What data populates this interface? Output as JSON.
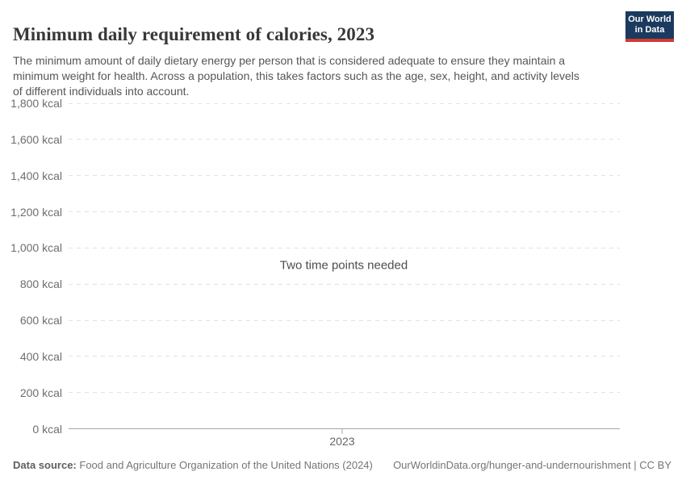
{
  "header": {
    "title": "Minimum daily requirement of calories, 2023",
    "subtitle": "The minimum amount of daily dietary energy per person that is considered adequate to ensure they maintain a minimum weight for health. Across a population, this takes factors such as the age, sex, height, and activity levels of different individuals into account.",
    "logo": {
      "line1": "Our World",
      "line2": "in Data"
    }
  },
  "colors": {
    "logo_bg": "#1b3a5f",
    "logo_stripe": "#cf3b31",
    "grid_line": "#e2e2e2",
    "axis_line": "#a6a6a6",
    "title_text": "#383838",
    "subtitle_text": "#565656",
    "tick_label_text": "#6e6e6e",
    "footer_text": "#757575"
  },
  "chart_data": {
    "type": "line",
    "title": "Minimum daily requirement of calories, 2023",
    "empty_message": "Two time points needed",
    "series": [],
    "ylim": [
      0,
      1800
    ],
    "grid": "horizontal-dashed",
    "y_ticks": [
      {
        "value": 0,
        "label": "0 kcal"
      },
      {
        "value": 200,
        "label": "200 kcal"
      },
      {
        "value": 400,
        "label": "400 kcal"
      },
      {
        "value": 600,
        "label": "600 kcal"
      },
      {
        "value": 800,
        "label": "800 kcal"
      },
      {
        "value": 1000,
        "label": "1,000 kcal"
      },
      {
        "value": 1200,
        "label": "1,200 kcal"
      },
      {
        "value": 1400,
        "label": "1,400 kcal"
      },
      {
        "value": 1600,
        "label": "1,600 kcal"
      },
      {
        "value": 1800,
        "label": "1,800 kcal"
      }
    ],
    "x_ticks": [
      {
        "label": "2023",
        "frac": 0.4963
      }
    ]
  },
  "footer": {
    "datasource_label": "Data source:",
    "datasource_text": "Food and Agriculture Organization of the United Nations (2024)",
    "link": "OurWorldinData.org/hunger-and-undernourishment",
    "separator": " | ",
    "license": "CC BY"
  }
}
